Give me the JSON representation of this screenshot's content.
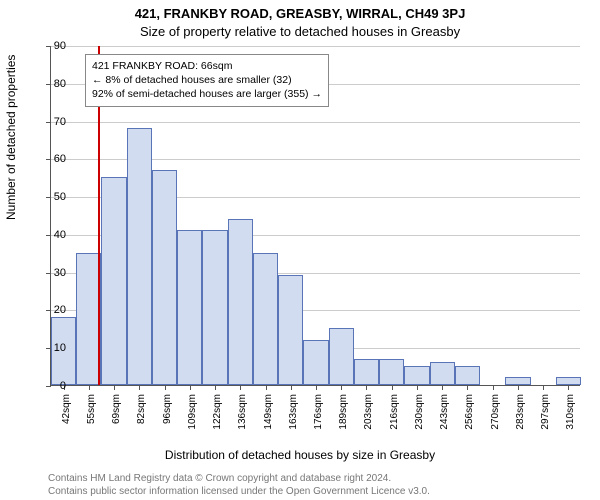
{
  "title_main": "421, FRANKBY ROAD, GREASBY, WIRRAL, CH49 3PJ",
  "title_sub": "Size of property relative to detached houses in Greasby",
  "yaxis_label": "Number of detached properties",
  "xaxis_label": "Distribution of detached houses by size in Greasby",
  "footer1": "Contains HM Land Registry data © Crown copyright and database right 2024.",
  "footer2": "Contains public sector information licensed under the Open Government Licence v3.0.",
  "chart": {
    "type": "histogram",
    "background_color": "#ffffff",
    "grid_color": "#cccccc",
    "axis_color": "#555555",
    "ylim": [
      0,
      90
    ],
    "ytick_step": 10,
    "yticks": [
      0,
      10,
      20,
      30,
      40,
      50,
      60,
      70,
      80,
      90
    ],
    "bar_fill": "#d2dcf1",
    "bar_stroke": "#5a74b8",
    "bar_width_ratio": 1.0,
    "ref_line_color": "#cc0000",
    "ref_value_x_index": 1.85,
    "categories": [
      "42sqm",
      "55sqm",
      "69sqm",
      "82sqm",
      "96sqm",
      "109sqm",
      "122sqm",
      "136sqm",
      "149sqm",
      "163sqm",
      "176sqm",
      "189sqm",
      "203sqm",
      "216sqm",
      "230sqm",
      "243sqm",
      "256sqm",
      "270sqm",
      "283sqm",
      "297sqm",
      "310sqm"
    ],
    "values": [
      18,
      35,
      55,
      68,
      57,
      41,
      41,
      44,
      35,
      29,
      12,
      15,
      7,
      7,
      5,
      6,
      5,
      0,
      2,
      0,
      2
    ],
    "annotation": {
      "line1": "421 FRANKBY ROAD: 66sqm",
      "line2": "← 8% of detached houses are smaller (32)",
      "line3": "92% of semi-detached houses are larger (355) →"
    }
  }
}
